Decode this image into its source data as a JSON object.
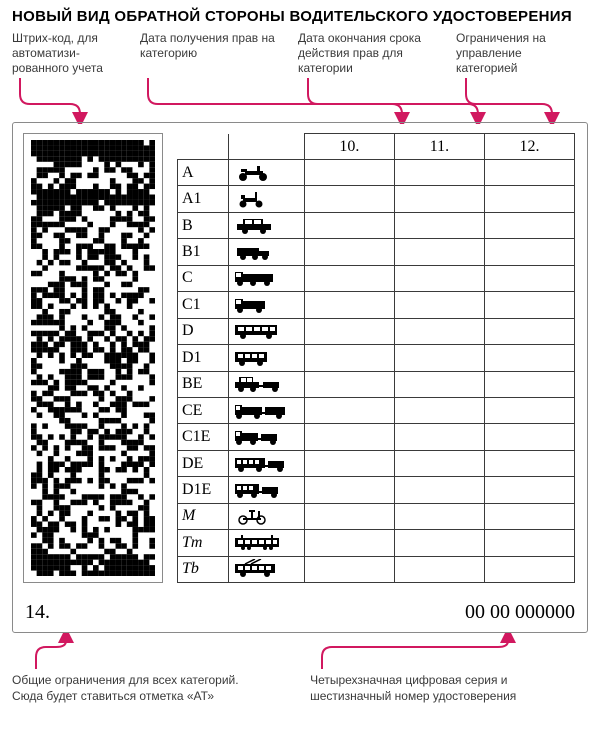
{
  "colors": {
    "accent": "#d1185f",
    "text": "#000000",
    "muted": "#3a3a3a",
    "border": "#8a8a8a",
    "bg": "#ffffff"
  },
  "title": "НОВЫЙ ВИД ОБРАТНОЙ СТОРОНЫ ВОДИТЕЛЬСКОГО УДОСТОВЕРЕНИЯ",
  "callouts_top": {
    "barcode": "Штрих-код, для автоматизи-\nрованного учета",
    "issued": "Дата получения прав на категорию",
    "expires": "Дата окончания срока действия прав для категории",
    "restrict": "Ограничения на управление категорией"
  },
  "table": {
    "headers": {
      "c10": "10.",
      "c11": "11.",
      "c12": "12."
    },
    "rows": [
      {
        "label": "A",
        "italic": false,
        "icon": "motorcycle"
      },
      {
        "label": "A1",
        "italic": false,
        "icon": "moped"
      },
      {
        "label": "B",
        "italic": false,
        "icon": "car"
      },
      {
        "label": "B1",
        "italic": false,
        "icon": "quad"
      },
      {
        "label": "C",
        "italic": false,
        "icon": "truck"
      },
      {
        "label": "C1",
        "italic": false,
        "icon": "truck-small"
      },
      {
        "label": "D",
        "italic": false,
        "icon": "bus"
      },
      {
        "label": "D1",
        "italic": false,
        "icon": "minibus"
      },
      {
        "label": "BE",
        "italic": false,
        "icon": "car-trailer"
      },
      {
        "label": "CE",
        "italic": false,
        "icon": "truck-trailer"
      },
      {
        "label": "C1E",
        "italic": false,
        "icon": "truck-small-trailer"
      },
      {
        "label": "DE",
        "italic": false,
        "icon": "bus-trailer"
      },
      {
        "label": "D1E",
        "italic": false,
        "icon": "minibus-trailer"
      },
      {
        "label": "M",
        "italic": true,
        "icon": "bicycle-motor"
      },
      {
        "label": "Tm",
        "italic": true,
        "icon": "tram"
      },
      {
        "label": "Tb",
        "italic": true,
        "icon": "trolleybus"
      }
    ]
  },
  "bottom": {
    "left": "14.",
    "right": "00 00 000000"
  },
  "callouts_bottom": {
    "left": "Общие ограничения для всех категорий. Сюда будет ставиться отметка «АТ»",
    "right": "Четырехзначная цифровая серия и шестизначный номер удостоверения"
  },
  "barcode": {
    "type": "pdf417-like",
    "cols": 22,
    "rows": 80,
    "seed": 9173,
    "solid_bands": [
      [
        0,
        3
      ],
      [
        9,
        11
      ],
      [
        76,
        79
      ]
    ]
  }
}
